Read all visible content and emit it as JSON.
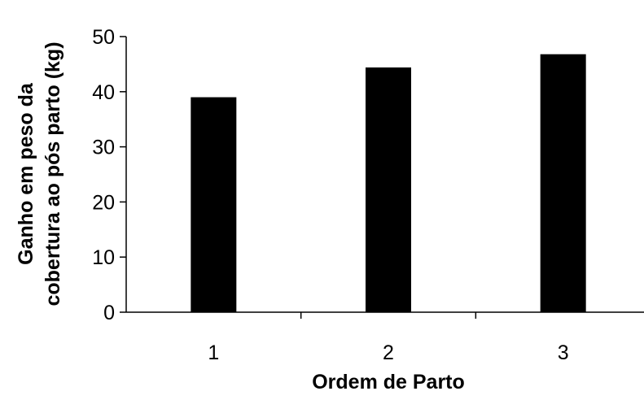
{
  "chart_data": {
    "type": "bar",
    "categories": [
      "1",
      "2",
      "3"
    ],
    "values": [
      39,
      44.4,
      46.8
    ],
    "title": "",
    "xlabel": "Ordem de Parto",
    "ylabel_lines": [
      "Ganho em peso da",
      "cobertura ao pós parto (kg)"
    ],
    "ylim": [
      0,
      50
    ],
    "yticks": [
      "0",
      "10",
      "20",
      "30",
      "40",
      "50"
    ],
    "grid": false,
    "legend": "none",
    "bar_color": "#000000"
  }
}
